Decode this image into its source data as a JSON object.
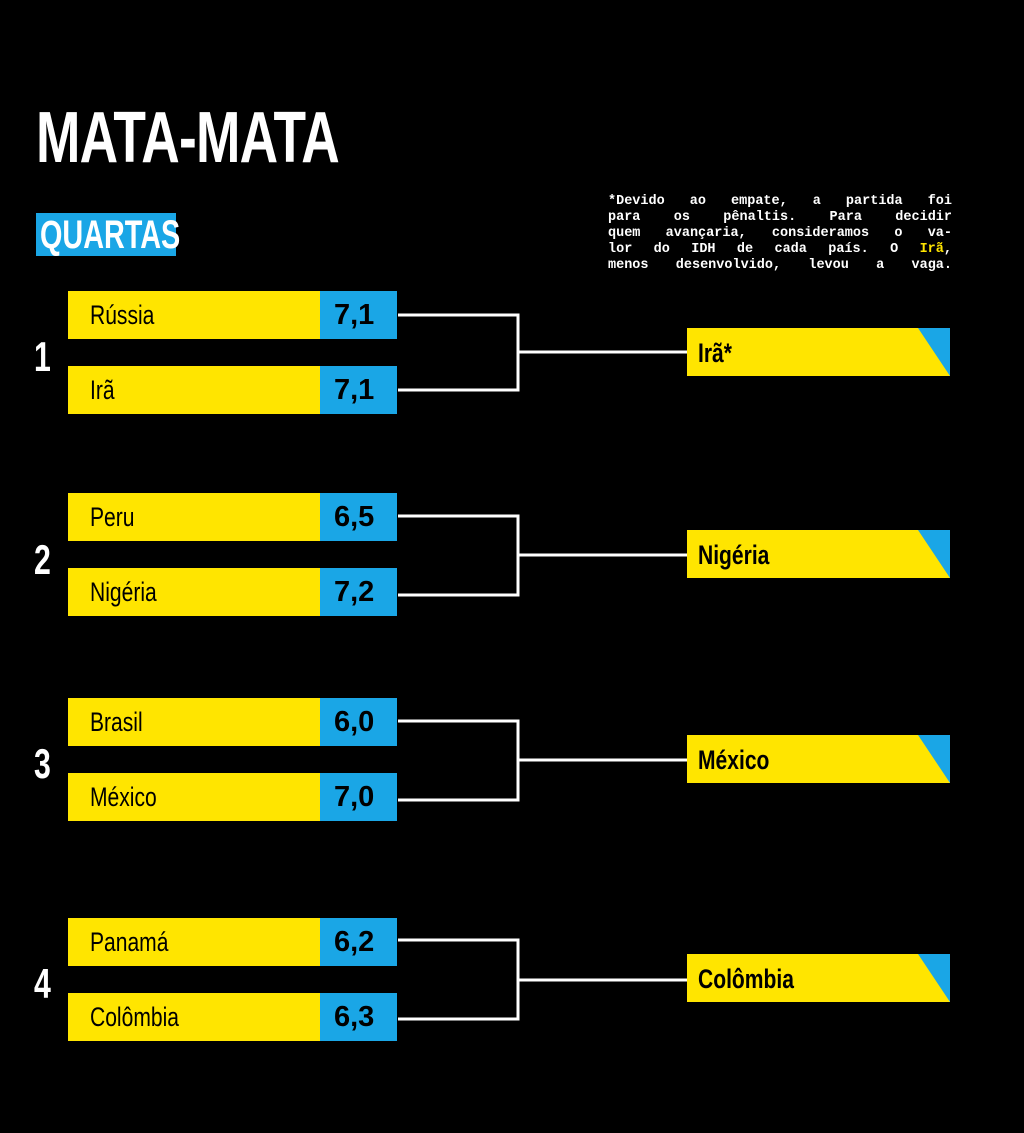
{
  "title": "MATA-MATA",
  "stage": "QUARTAS",
  "note": {
    "line1": "*Devido ao empate, a partida foi",
    "line2": "para os pênaltis. Para decidir",
    "line3": "quem avançaria, consideramos o va-",
    "line4_before": "lor do IDH de cada país. O ",
    "line4_highlight": "Irã",
    "line4_after": ",",
    "line5": "menos desenvolvido, levou a vaga."
  },
  "colors": {
    "background": "#000000",
    "team_box": "#ffe500",
    "score_box": "#1aa6e6",
    "text_light": "#ffffff",
    "text_dark": "#000000"
  },
  "matches": [
    {
      "number": "1",
      "team_a": {
        "name": "Rússia",
        "score": "7,1"
      },
      "team_b": {
        "name": "Irã",
        "score": "7,1"
      },
      "winner": "Irã*"
    },
    {
      "number": "2",
      "team_a": {
        "name": "Peru",
        "score": "6,5"
      },
      "team_b": {
        "name": "Nigéria",
        "score": "7,2"
      },
      "winner": "Nigéria"
    },
    {
      "number": "3",
      "team_a": {
        "name": "Brasil",
        "score": "6,0"
      },
      "team_b": {
        "name": "México",
        "score": "7,0"
      },
      "winner": "México"
    },
    {
      "number": "4",
      "team_a": {
        "name": "Panamá",
        "score": "6,2"
      },
      "team_b": {
        "name": "Colômbia",
        "score": "6,3"
      },
      "winner": "Colômbia"
    }
  ]
}
